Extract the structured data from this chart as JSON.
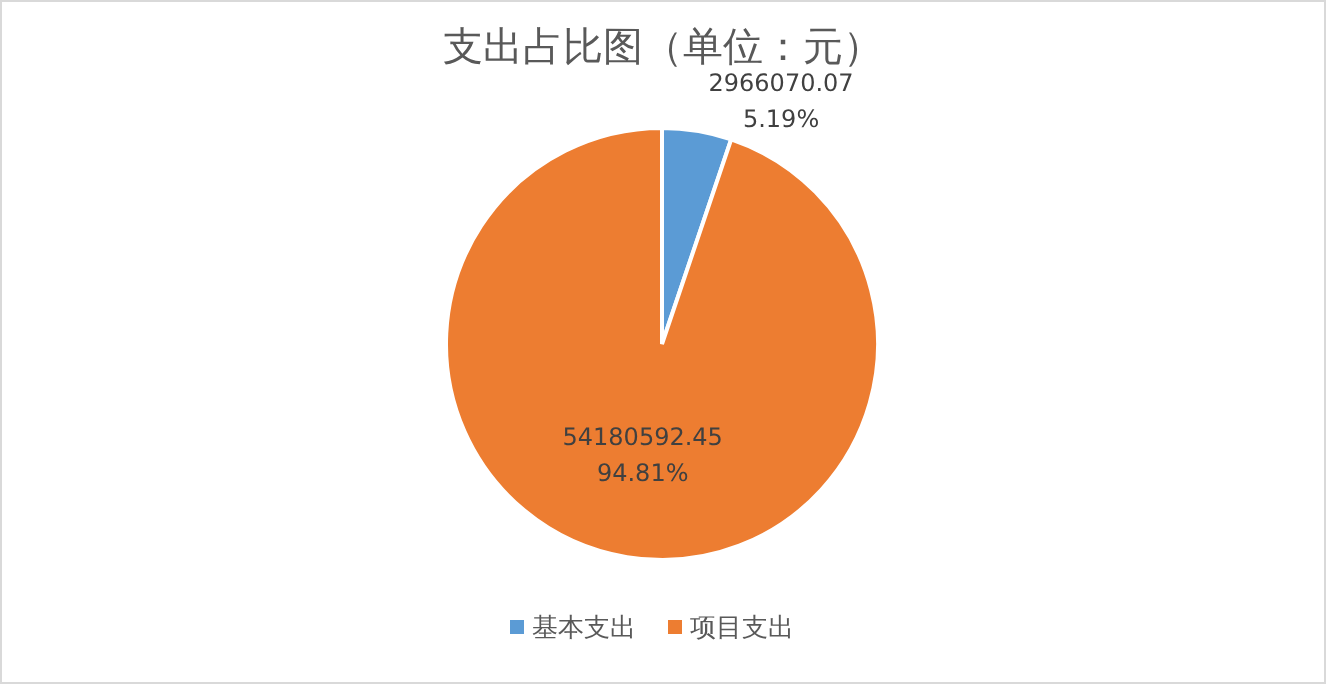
{
  "chart_data": {
    "type": "pie",
    "title": "支出占比图（单位：元）",
    "categories": [
      "基本支出",
      "项目支出"
    ],
    "values": [
      2966070.07,
      54180592.45
    ],
    "colors": [
      "#5b9bd5",
      "#ed7d31"
    ],
    "value_labels": [
      "2966070.07\n5.19%",
      "54180592.45\n94.81%"
    ],
    "legend": "bottom"
  }
}
